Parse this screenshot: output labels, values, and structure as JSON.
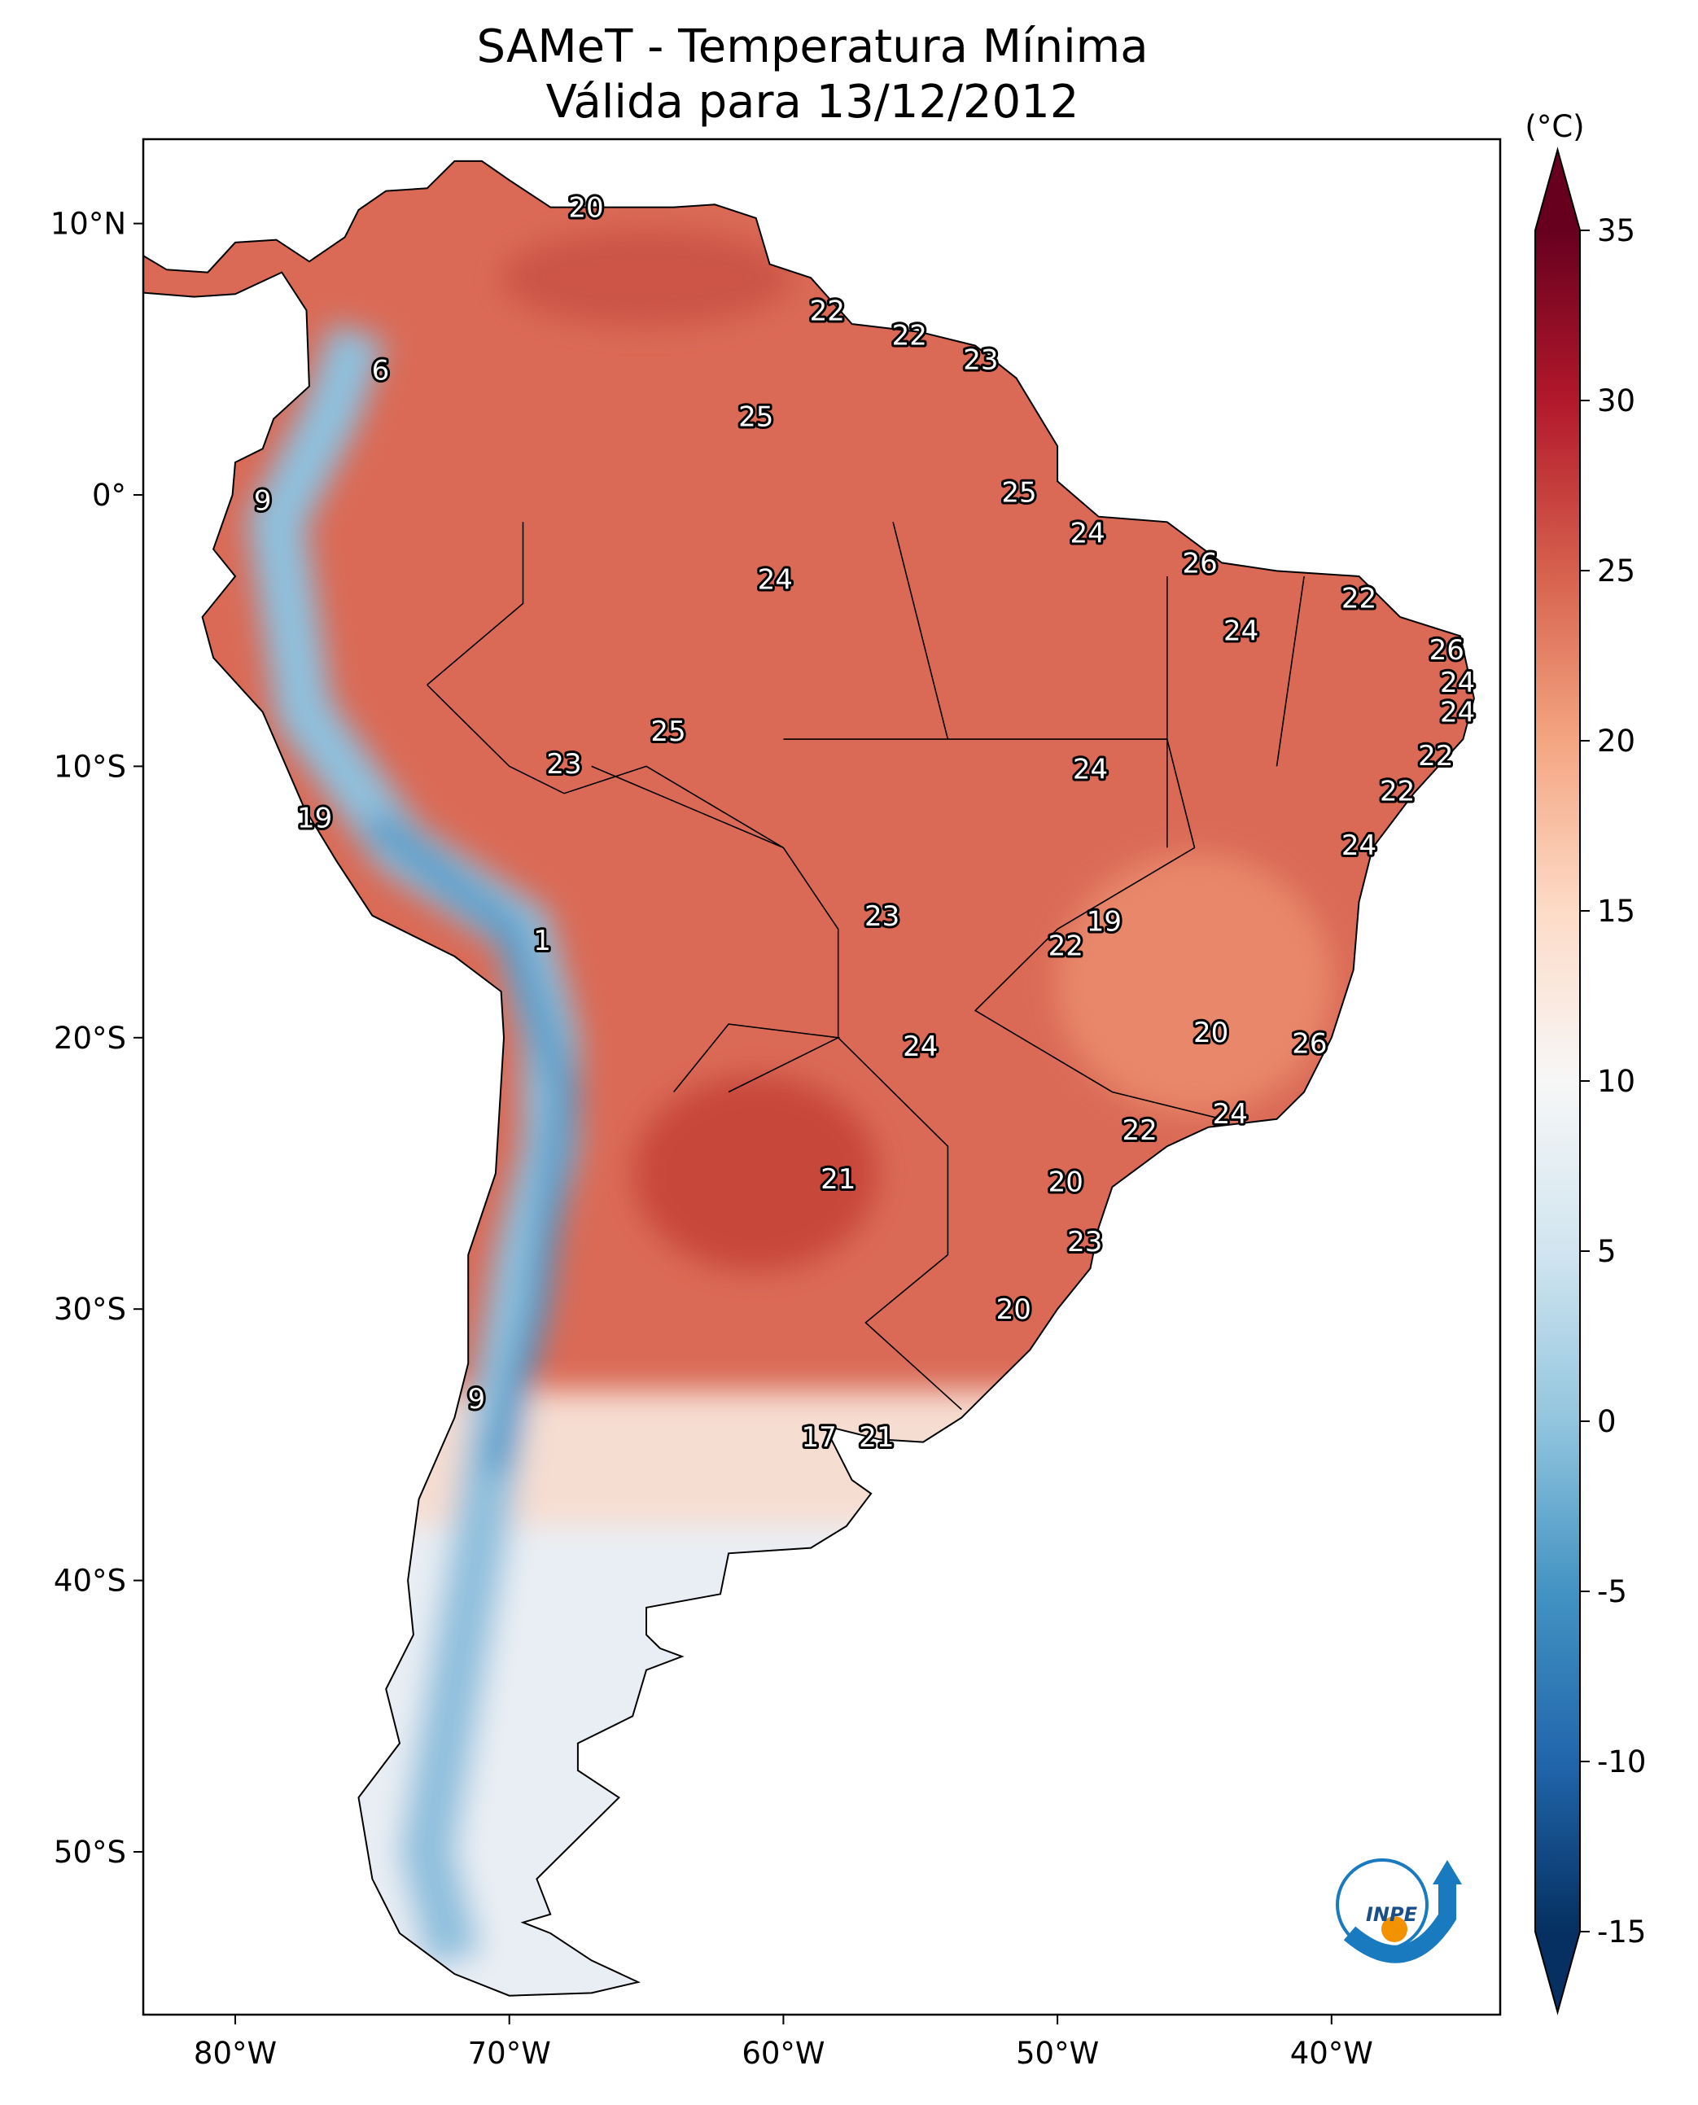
{
  "title": {
    "line1": "SAMeT - Temperatura Mínima",
    "line2": "Válida para 13/12/2012"
  },
  "map": {
    "projection": "PlateCarree",
    "lon_range": [
      -83.4,
      -33.8
    ],
    "lat_range": [
      -56,
      13.1
    ],
    "lon_ticks": [
      {
        "value": -80,
        "label": "80°W"
      },
      {
        "value": -70,
        "label": "70°W"
      },
      {
        "value": -60,
        "label": "60°W"
      },
      {
        "value": -50,
        "label": "50°W"
      },
      {
        "value": -40,
        "label": "40°W"
      }
    ],
    "lat_ticks": [
      {
        "value": 10,
        "label": "10°N"
      },
      {
        "value": 0,
        "label": "0°"
      },
      {
        "value": -10,
        "label": "10°S"
      },
      {
        "value": -20,
        "label": "20°S"
      },
      {
        "value": -30,
        "label": "30°S"
      },
      {
        "value": -40,
        "label": "40°S"
      },
      {
        "value": -50,
        "label": "50°S"
      }
    ],
    "station_labels": [
      {
        "value": "20",
        "lon": -67.2,
        "lat": 10.6
      },
      {
        "value": "22",
        "lon": -58.4,
        "lat": 6.8
      },
      {
        "value": "22",
        "lon": -55.4,
        "lat": 5.9
      },
      {
        "value": "23",
        "lon": -52.8,
        "lat": 5.0
      },
      {
        "value": "6",
        "lon": -74.7,
        "lat": 4.6
      },
      {
        "value": "25",
        "lon": -61.0,
        "lat": 2.9
      },
      {
        "value": "9",
        "lon": -79.0,
        "lat": -0.2
      },
      {
        "value": "25",
        "lon": -51.4,
        "lat": 0.1
      },
      {
        "value": "24",
        "lon": -48.9,
        "lat": -1.4
      },
      {
        "value": "26",
        "lon": -44.8,
        "lat": -2.5
      },
      {
        "value": "24",
        "lon": -60.3,
        "lat": -3.1
      },
      {
        "value": "22",
        "lon": -39.0,
        "lat": -3.8
      },
      {
        "value": "24",
        "lon": -43.3,
        "lat": -5.0
      },
      {
        "value": "26",
        "lon": -35.8,
        "lat": -5.7
      },
      {
        "value": "24",
        "lon": -35.4,
        "lat": -6.9
      },
      {
        "value": "24",
        "lon": -35.4,
        "lat": -8.0
      },
      {
        "value": "25",
        "lon": -64.2,
        "lat": -8.7
      },
      {
        "value": "22",
        "lon": -36.2,
        "lat": -9.6
      },
      {
        "value": "23",
        "lon": -68.0,
        "lat": -9.9
      },
      {
        "value": "24",
        "lon": -48.8,
        "lat": -10.1
      },
      {
        "value": "22",
        "lon": -37.6,
        "lat": -10.9
      },
      {
        "value": "19",
        "lon": -77.1,
        "lat": -11.9
      },
      {
        "value": "24",
        "lon": -39.0,
        "lat": -12.9
      },
      {
        "value": "23",
        "lon": -56.4,
        "lat": -15.5
      },
      {
        "value": "19",
        "lon": -48.3,
        "lat": -15.7
      },
      {
        "value": "1",
        "lon": -68.8,
        "lat": -16.4
      },
      {
        "value": "22",
        "lon": -49.7,
        "lat": -16.6
      },
      {
        "value": "20",
        "lon": -44.4,
        "lat": -19.8
      },
      {
        "value": "26",
        "lon": -40.8,
        "lat": -20.2
      },
      {
        "value": "24",
        "lon": -55.0,
        "lat": -20.3
      },
      {
        "value": "24",
        "lon": -43.7,
        "lat": -22.8
      },
      {
        "value": "22",
        "lon": -47.0,
        "lat": -23.4
      },
      {
        "value": "21",
        "lon": -58.0,
        "lat": -25.2
      },
      {
        "value": "20",
        "lon": -49.7,
        "lat": -25.3
      },
      {
        "value": "23",
        "lon": -49.0,
        "lat": -27.5
      },
      {
        "value": "20",
        "lon": -51.6,
        "lat": -30.0
      },
      {
        "value": "9",
        "lon": -71.2,
        "lat": -33.3
      },
      {
        "value": "17",
        "lon": -58.7,
        "lat": -34.7
      },
      {
        "value": "21",
        "lon": -56.6,
        "lat": -34.7
      }
    ]
  },
  "colorbar": {
    "unit": "(°C)",
    "range": [
      -15,
      35
    ],
    "extend": "both",
    "colormap": "RdBu_r",
    "ticks": [
      {
        "value": 35,
        "label": "35"
      },
      {
        "value": 30,
        "label": "30"
      },
      {
        "value": 25,
        "label": "25"
      },
      {
        "value": 20,
        "label": "20"
      },
      {
        "value": 15,
        "label": "15"
      },
      {
        "value": 10,
        "label": "10"
      },
      {
        "value": 5,
        "label": "5"
      },
      {
        "value": 0,
        "label": "0"
      },
      {
        "value": -5,
        "label": "-5"
      },
      {
        "value": -10,
        "label": "-10"
      },
      {
        "value": -15,
        "label": "-15"
      }
    ],
    "colors": [
      "#053061",
      "#2166ac",
      "#4393c3",
      "#92c5de",
      "#d1e5f0",
      "#f7f7f7",
      "#fddbc7",
      "#f4a582",
      "#d6604d",
      "#b2182b",
      "#67001f"
    ]
  },
  "logo": {
    "text": "INPE",
    "blue": "#1a7abf",
    "orange": "#f39200"
  }
}
